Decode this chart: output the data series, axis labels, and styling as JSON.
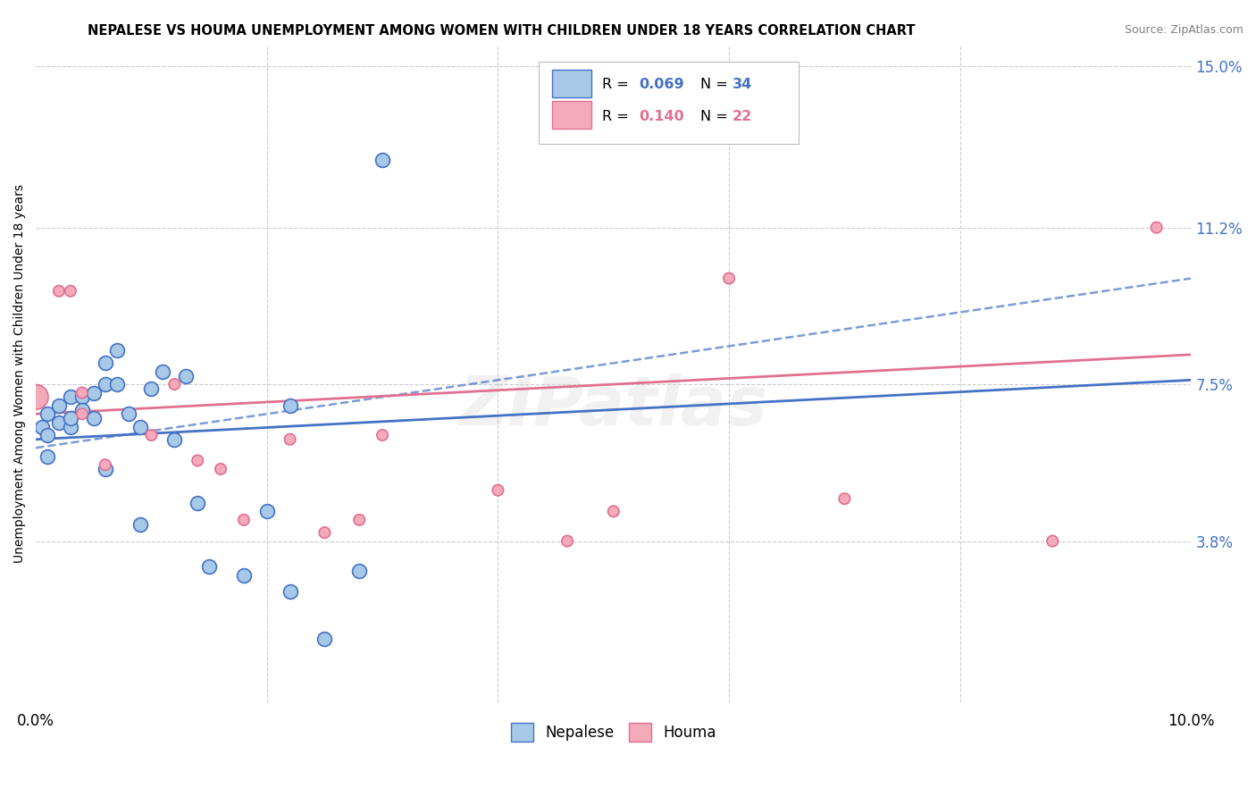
{
  "title": "NEPALESE VS HOUMA UNEMPLOYMENT AMONG WOMEN WITH CHILDREN UNDER 18 YEARS CORRELATION CHART",
  "source": "Source: ZipAtlas.com",
  "ylabel": "Unemployment Among Women with Children Under 18 years",
  "xlim": [
    0.0,
    0.1
  ],
  "ylim": [
    0.0,
    0.155
  ],
  "xtick_positions": [
    0.0,
    0.02,
    0.04,
    0.06,
    0.08,
    0.1
  ],
  "xticklabels": [
    "0.0%",
    "",
    "",
    "",
    "",
    "10.0%"
  ],
  "ytick_labels_right": [
    "3.8%",
    "7.5%",
    "11.2%",
    "15.0%"
  ],
  "ytick_values_right": [
    0.038,
    0.075,
    0.112,
    0.15
  ],
  "nepalese_color": "#A8C8E8",
  "houma_color": "#F4AABB",
  "nepalese_edge": "#4472C4",
  "houma_edge": "#E07090",
  "nepalese_x": [
    0.0005,
    0.001,
    0.001,
    0.001,
    0.002,
    0.002,
    0.003,
    0.003,
    0.003,
    0.004,
    0.004,
    0.005,
    0.005,
    0.006,
    0.006,
    0.006,
    0.007,
    0.007,
    0.008,
    0.009,
    0.009,
    0.01,
    0.011,
    0.012,
    0.013,
    0.014,
    0.015,
    0.018,
    0.02,
    0.022,
    0.022,
    0.025,
    0.028,
    0.03
  ],
  "nepalese_y": [
    0.065,
    0.058,
    0.063,
    0.068,
    0.066,
    0.07,
    0.065,
    0.067,
    0.072,
    0.072,
    0.069,
    0.067,
    0.073,
    0.075,
    0.08,
    0.055,
    0.083,
    0.075,
    0.068,
    0.042,
    0.065,
    0.074,
    0.078,
    0.062,
    0.077,
    0.047,
    0.032,
    0.03,
    0.045,
    0.07,
    0.026,
    0.015,
    0.031,
    0.128
  ],
  "houma_x": [
    0.0,
    0.002,
    0.003,
    0.004,
    0.004,
    0.006,
    0.01,
    0.012,
    0.014,
    0.016,
    0.018,
    0.022,
    0.025,
    0.028,
    0.03,
    0.04,
    0.046,
    0.05,
    0.06,
    0.07,
    0.088,
    0.097
  ],
  "houma_y": [
    0.072,
    0.097,
    0.097,
    0.073,
    0.068,
    0.056,
    0.063,
    0.075,
    0.057,
    0.055,
    0.043,
    0.062,
    0.04,
    0.043,
    0.063,
    0.05,
    0.038,
    0.045,
    0.1,
    0.048,
    0.038,
    0.112
  ],
  "houma_sizes": [
    400,
    80,
    80,
    80,
    80,
    80,
    80,
    80,
    80,
    80,
    80,
    80,
    80,
    80,
    80,
    80,
    80,
    80,
    80,
    80,
    80,
    80
  ],
  "nepalese_line_x": [
    0.0,
    0.1
  ],
  "nepalese_line_y": [
    0.062,
    0.076
  ],
  "houma_line_x": [
    0.0,
    0.1
  ],
  "houma_line_y": [
    0.068,
    0.082
  ],
  "background_color": "#FFFFFF",
  "grid_color": "#CCCCCC",
  "watermark": "ZIPatlas"
}
